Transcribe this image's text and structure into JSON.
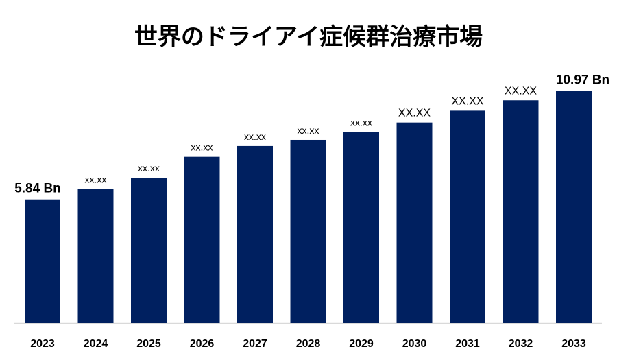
{
  "chart_data": {
    "type": "bar",
    "title": "世界のドライアイ症候群治療市場",
    "categories": [
      "2023",
      "2024",
      "2025",
      "2026",
      "2027",
      "2028",
      "2029",
      "2030",
      "2031",
      "2032",
      "2033"
    ],
    "values": [
      5.84,
      6.33,
      6.86,
      7.85,
      8.36,
      8.65,
      9.02,
      9.47,
      10.03,
      10.52,
      10.97
    ],
    "data_labels": [
      "5.84 Bn",
      "xx.xx",
      "xx.xx",
      "xx.xx",
      "xx.xx",
      "xx.xx",
      "xx.xx",
      "XX.XX",
      "XX.XX",
      "XX.XX",
      "10.97 Bn"
    ],
    "xlabel": "",
    "ylabel": "",
    "ylim": [
      0,
      11.5
    ],
    "grid": false,
    "legend": "none",
    "bar_color": "#002060"
  }
}
